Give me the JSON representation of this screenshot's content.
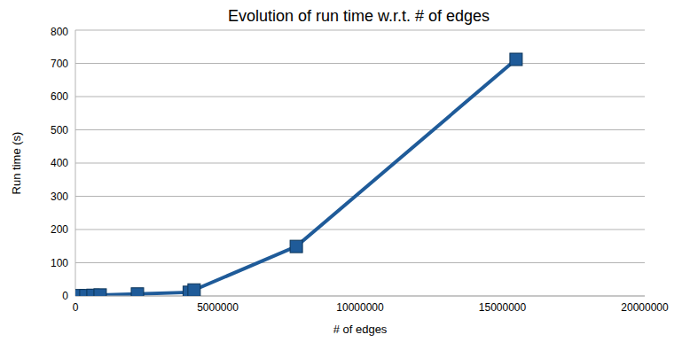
{
  "chart_data": {
    "type": "line",
    "title": "Evolution of run time w.r.t. # of edges",
    "x_label": "# of edges",
    "y_label": "Run time (s)",
    "x": [
      100000,
      370000,
      620000,
      870000,
      2180000,
      4000000,
      4170000,
      7760000,
      15480000
    ],
    "series": [
      {
        "name": "Run time",
        "color": "#1f5b99",
        "marker": "square",
        "values": [
          1,
          1,
          2,
          3,
          6,
          11,
          18,
          149,
          712
        ]
      }
    ],
    "xlim": [
      0,
      20000000
    ],
    "xticks": [
      0,
      5000000,
      10000000,
      15000000,
      20000000
    ],
    "ylim": [
      0,
      800
    ],
    "yticks": [
      0,
      100,
      200,
      300,
      400,
      500,
      600,
      700,
      800
    ],
    "grid": true
  }
}
